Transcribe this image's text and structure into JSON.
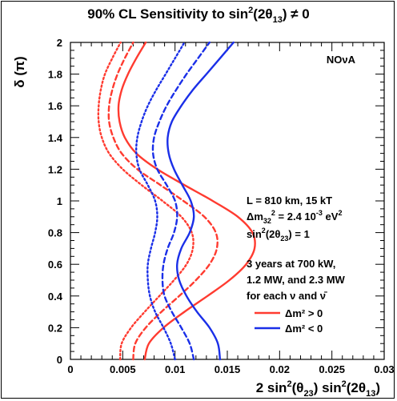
{
  "chart_data": {
    "type": "line",
    "title": "90% CL Sensitivity to sin²(2θ₁₃) ≠ 0",
    "xlabel": "2 sin²(θ₂₃) sin²(2θ₁₃)",
    "ylabel": "δ (π)",
    "xlim": [
      0,
      0.03
    ],
    "ylim": [
      0,
      2
    ],
    "x_ticks": [
      "0",
      "0.005",
      "0.01",
      "0.015",
      "0.02",
      "0.025",
      "0.03"
    ],
    "y_ticks": [
      "0",
      "0.2",
      "0.4",
      "0.6",
      "0.8",
      "1",
      "1.2",
      "1.4",
      "1.6",
      "1.8",
      "2"
    ],
    "grid": false,
    "experiment_label": "NOνA",
    "annotations": [
      "L = 810 km, 15 kT",
      "Δm₃₂² = 2.4 10⁻³ eV²",
      "sin²(2θ₂₃) = 1",
      "3 years at 700 kW,",
      "1.2 MW, and 2.3 MW",
      "for each ν and ν̄"
    ],
    "legend": [
      {
        "label": "Δm² > 0",
        "color": "#ff3b30"
      },
      {
        "label": "Δm² < 0",
        "color": "#1a2fe8"
      }
    ],
    "legend_placement": "bottom-right",
    "series": [
      {
        "group": "Δm² > 0",
        "style": "dotted",
        "color": "#ff3b30",
        "points": [
          [
            0.00475,
            0
          ],
          [
            0.0049,
            0.1
          ],
          [
            0.0058,
            0.2
          ],
          [
            0.0071,
            0.3
          ],
          [
            0.0085,
            0.4
          ],
          [
            0.0099,
            0.5
          ],
          [
            0.0111,
            0.6
          ],
          [
            0.0117,
            0.7
          ],
          [
            0.0116,
            0.8
          ],
          [
            0.0106,
            0.9
          ],
          [
            0.0088,
            1.0
          ],
          [
            0.0068,
            1.1
          ],
          [
            0.005,
            1.2
          ],
          [
            0.0037,
            1.3
          ],
          [
            0.003,
            1.4
          ],
          [
            0.0027,
            1.5
          ],
          [
            0.0027,
            1.6
          ],
          [
            0.0029,
            1.7
          ],
          [
            0.0033,
            1.8
          ],
          [
            0.004,
            1.9
          ],
          [
            0.0048,
            2.0
          ]
        ]
      },
      {
        "group": "Δm² > 0",
        "style": "dashed",
        "color": "#ff3b30",
        "points": [
          [
            0.006,
            0
          ],
          [
            0.0062,
            0.1
          ],
          [
            0.0072,
            0.2
          ],
          [
            0.0087,
            0.3
          ],
          [
            0.0104,
            0.4
          ],
          [
            0.012,
            0.5
          ],
          [
            0.0133,
            0.6
          ],
          [
            0.014,
            0.7
          ],
          [
            0.0139,
            0.8
          ],
          [
            0.0128,
            0.9
          ],
          [
            0.0108,
            1.0
          ],
          [
            0.0086,
            1.1
          ],
          [
            0.0064,
            1.2
          ],
          [
            0.0049,
            1.3
          ],
          [
            0.0041,
            1.4
          ],
          [
            0.0037,
            1.5
          ],
          [
            0.0037,
            1.6
          ],
          [
            0.004,
            1.7
          ],
          [
            0.0045,
            1.8
          ],
          [
            0.0052,
            1.9
          ],
          [
            0.006,
            2.0
          ]
        ]
      },
      {
        "group": "Δm² > 0",
        "style": "solid",
        "color": "#ff3b30",
        "points": [
          [
            0.0071,
            0
          ],
          [
            0.0075,
            0.1
          ],
          [
            0.0089,
            0.2
          ],
          [
            0.0109,
            0.3
          ],
          [
            0.0131,
            0.4
          ],
          [
            0.0152,
            0.5
          ],
          [
            0.0168,
            0.6
          ],
          [
            0.0176,
            0.7
          ],
          [
            0.0174,
            0.8
          ],
          [
            0.016,
            0.9
          ],
          [
            0.0136,
            1.0
          ],
          [
            0.0109,
            1.1
          ],
          [
            0.0083,
            1.2
          ],
          [
            0.0063,
            1.3
          ],
          [
            0.0052,
            1.4
          ],
          [
            0.0047,
            1.5
          ],
          [
            0.0046,
            1.6
          ],
          [
            0.0049,
            1.7
          ],
          [
            0.0055,
            1.8
          ],
          [
            0.0063,
            1.9
          ],
          [
            0.0072,
            2.0
          ]
        ]
      },
      {
        "group": "Δm² < 0",
        "style": "dotted",
        "color": "#1a2fe8",
        "points": [
          [
            0.01,
            0
          ],
          [
            0.0096,
            0.1
          ],
          [
            0.0089,
            0.2
          ],
          [
            0.0081,
            0.3
          ],
          [
            0.0076,
            0.4
          ],
          [
            0.0074,
            0.5
          ],
          [
            0.0074,
            0.6
          ],
          [
            0.0077,
            0.7
          ],
          [
            0.0081,
            0.8
          ],
          [
            0.0083,
            0.9
          ],
          [
            0.0081,
            1.0
          ],
          [
            0.0074,
            1.1
          ],
          [
            0.0066,
            1.2
          ],
          [
            0.0063,
            1.3
          ],
          [
            0.0064,
            1.4
          ],
          [
            0.0068,
            1.5
          ],
          [
            0.0074,
            1.6
          ],
          [
            0.0082,
            1.7
          ],
          [
            0.0091,
            1.8
          ],
          [
            0.01,
            1.9
          ],
          [
            0.0109,
            2.0
          ]
        ]
      },
      {
        "group": "Δm² < 0",
        "style": "dashed",
        "color": "#1a2fe8",
        "points": [
          [
            0.0118,
            0
          ],
          [
            0.0114,
            0.1
          ],
          [
            0.0106,
            0.2
          ],
          [
            0.0097,
            0.3
          ],
          [
            0.009,
            0.4
          ],
          [
            0.0088,
            0.5
          ],
          [
            0.0089,
            0.6
          ],
          [
            0.0093,
            0.7
          ],
          [
            0.0099,
            0.8
          ],
          [
            0.0102,
            0.9
          ],
          [
            0.01,
            1.0
          ],
          [
            0.0092,
            1.1
          ],
          [
            0.0083,
            1.2
          ],
          [
            0.0079,
            1.3
          ],
          [
            0.008,
            1.4
          ],
          [
            0.0085,
            1.5
          ],
          [
            0.0092,
            1.6
          ],
          [
            0.0101,
            1.7
          ],
          [
            0.0111,
            1.8
          ],
          [
            0.0122,
            1.9
          ],
          [
            0.0133,
            2.0
          ]
        ]
      },
      {
        "group": "Δm² < 0",
        "style": "solid",
        "color": "#1a2fe8",
        "points": [
          [
            0.0143,
            0
          ],
          [
            0.0141,
            0.1
          ],
          [
            0.0133,
            0.2
          ],
          [
            0.0121,
            0.3
          ],
          [
            0.0111,
            0.4
          ],
          [
            0.0104,
            0.5
          ],
          [
            0.0102,
            0.6
          ],
          [
            0.0106,
            0.7
          ],
          [
            0.0114,
            0.8
          ],
          [
            0.0118,
            0.9
          ],
          [
            0.0115,
            1.0
          ],
          [
            0.0107,
            1.1
          ],
          [
            0.0099,
            1.2
          ],
          [
            0.0094,
            1.3
          ],
          [
            0.0093,
            1.4
          ],
          [
            0.0097,
            1.5
          ],
          [
            0.0106,
            1.6
          ],
          [
            0.0117,
            1.7
          ],
          [
            0.013,
            1.8
          ],
          [
            0.0143,
            1.9
          ],
          [
            0.0156,
            2.0
          ]
        ]
      }
    ]
  }
}
